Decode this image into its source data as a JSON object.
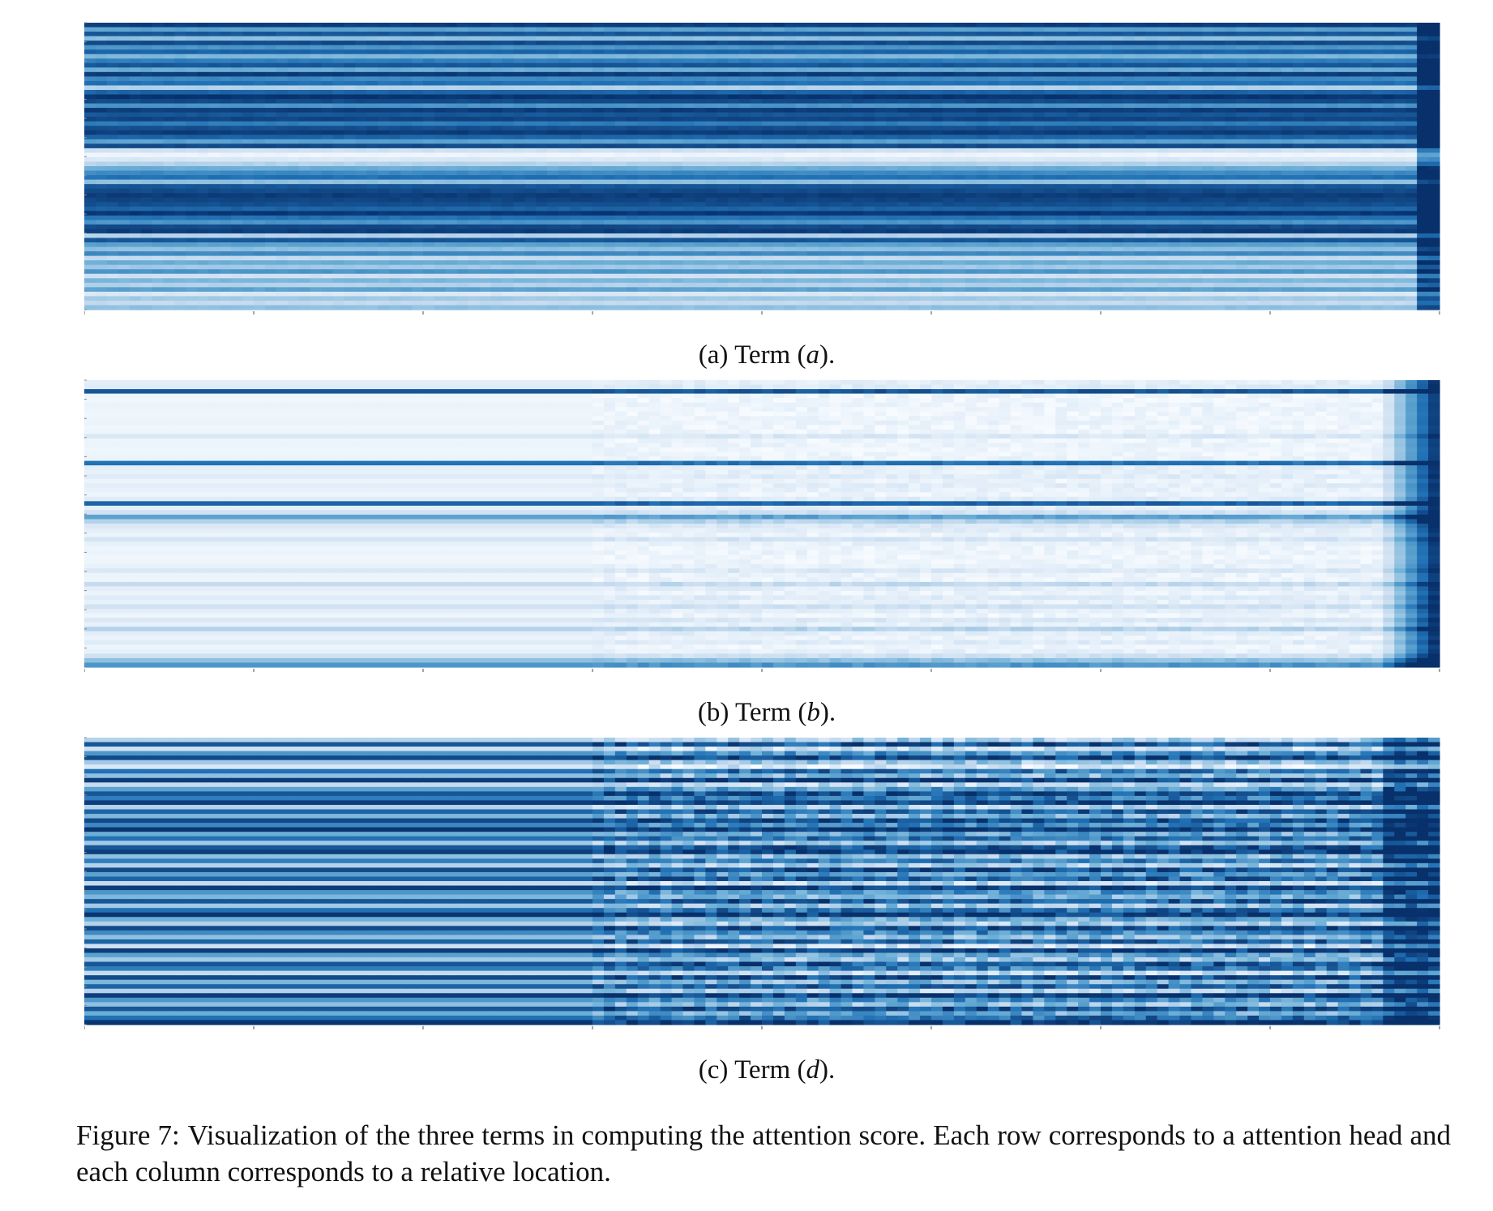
{
  "chart_data": [
    {
      "type": "heatmap",
      "caption_label": "(a)",
      "caption_word": "Term",
      "caption_math": "a",
      "colormap": "Blues",
      "rows_description_values": {
        "n_rows": 64,
        "n_cols": 120,
        "row_pattern": "horizontal stripes: each row roughly constant across columns",
        "row_intensity": [
          0.95,
          0.55,
          0.85,
          0.4,
          0.9,
          0.6,
          0.8,
          0.45,
          0.7,
          0.85,
          0.5,
          0.95,
          0.65,
          0.75,
          0.3,
          0.8,
          0.98,
          0.9,
          0.6,
          0.95,
          0.85,
          0.92,
          0.7,
          0.88,
          0.95,
          0.8,
          0.55,
          0.9,
          0.2,
          0.05,
          0.15,
          0.3,
          0.5,
          0.65,
          0.75,
          0.4,
          0.85,
          0.9,
          0.95,
          0.92,
          0.88,
          0.8,
          0.97,
          0.75,
          0.6,
          0.9,
          0.95,
          0.3,
          0.85,
          0.55,
          0.4,
          0.65,
          0.25,
          0.5,
          0.35,
          0.6,
          0.2,
          0.45,
          0.3,
          0.55,
          0.15,
          0.35,
          0.25,
          0.4
        ]
      }
    },
    {
      "type": "heatmap",
      "caption_label": "(b)",
      "caption_word": "Term",
      "caption_math": "b",
      "colormap": "Blues",
      "rows_description_values": {
        "n_rows": 64,
        "n_cols": 120,
        "row_pattern": "mostly near-white; a few dark rows; strong dark values at the rightmost columns",
        "row_intensity": [
          0.1,
          0.12,
          0.85,
          0.05,
          0.04,
          0.06,
          0.05,
          0.04,
          0.05,
          0.06,
          0.04,
          0.05,
          0.15,
          0.05,
          0.06,
          0.04,
          0.05,
          0.06,
          0.75,
          0.1,
          0.08,
          0.12,
          0.06,
          0.1,
          0.08,
          0.05,
          0.12,
          0.8,
          0.1,
          0.2,
          0.55,
          0.3,
          0.15,
          0.1,
          0.06,
          0.18,
          0.08,
          0.05,
          0.06,
          0.04,
          0.05,
          0.08,
          0.15,
          0.06,
          0.05,
          0.25,
          0.1,
          0.06,
          0.12,
          0.08,
          0.2,
          0.1,
          0.05,
          0.15,
          0.08,
          0.3,
          0.1,
          0.06,
          0.12,
          0.05,
          0.08,
          0.2,
          0.4,
          0.6
        ]
      }
    },
    {
      "type": "heatmap",
      "caption_label": "(c)",
      "caption_word": "Term",
      "caption_math": "d",
      "colormap": "Blues",
      "rows_description_values": {
        "n_rows": 64,
        "n_cols": 120,
        "row_pattern": "alternating light/dark stripes with column-dependent texture in right portion",
        "row_intensity": [
          0.3,
          0.85,
          0.2,
          0.6,
          0.9,
          0.35,
          0.15,
          0.75,
          0.4,
          0.95,
          0.25,
          0.55,
          0.85,
          0.7,
          0.95,
          0.3,
          0.8,
          0.45,
          0.9,
          0.65,
          0.98,
          0.5,
          0.75,
          0.35,
          0.85,
          0.95,
          0.4,
          0.7,
          0.3,
          0.9,
          0.55,
          0.8,
          0.25,
          0.95,
          0.6,
          0.45,
          0.85,
          0.35,
          0.75,
          0.98,
          0.5,
          0.3,
          0.9,
          0.65,
          0.4,
          0.8,
          0.2,
          0.95,
          0.55,
          0.35,
          0.85,
          0.7,
          0.25,
          0.9,
          0.45,
          0.8,
          0.3,
          0.95,
          0.6,
          0.4,
          0.85,
          0.5,
          0.75,
          0.98
        ]
      }
    }
  ],
  "figure_caption": {
    "label": "Figure 7:",
    "text": "Visualization of the three terms in computing the attention score. Each row corresponds to a attention head and each column corresponds to a relative location."
  }
}
